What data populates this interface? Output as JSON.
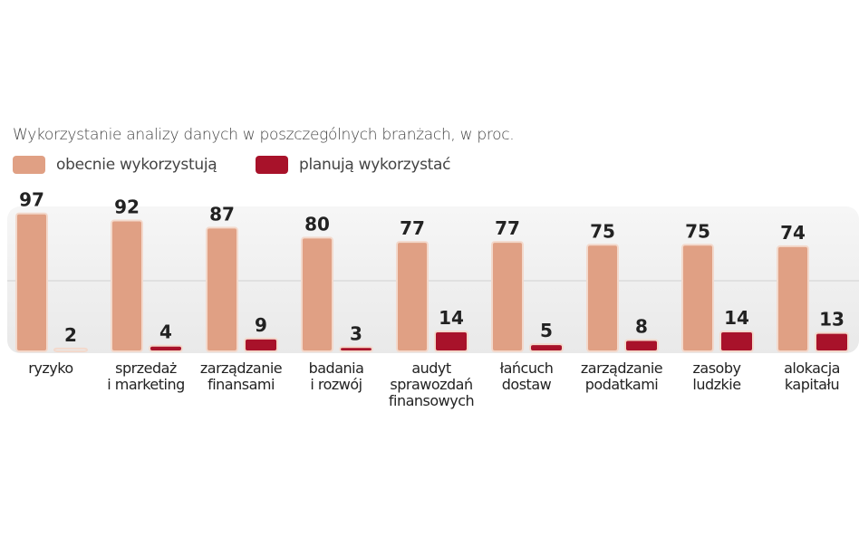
{
  "chart_data": {
    "type": "bar",
    "title": "Wykorzystanie  analizy danych w poszczególnych branżach, w  proc.",
    "categories": [
      [
        "ryzyko"
      ],
      [
        "sprzedaż",
        "i marketing"
      ],
      [
        "zarządzanie",
        "finansami"
      ],
      [
        "badania",
        "i rozwój"
      ],
      [
        "audyt",
        "sprawozdań",
        "finansowych"
      ],
      [
        "łańcuch",
        "dostaw"
      ],
      [
        "zarządzanie",
        "podatkami"
      ],
      [
        "zasoby",
        "ludzkie"
      ],
      [
        "alokacja",
        "kapitału"
      ]
    ],
    "series": [
      {
        "name": "obecnie wykorzystują",
        "color": "#e0a084",
        "values": [
          97,
          92,
          87,
          80,
          77,
          77,
          75,
          75,
          74
        ]
      },
      {
        "name": "planują wykorzystać",
        "color": "#a8122a",
        "values": [
          2,
          4,
          9,
          3,
          14,
          5,
          8,
          14,
          13
        ]
      }
    ],
    "xlabel": "",
    "ylabel": "",
    "ylim": [
      0,
      100
    ],
    "grid": true,
    "legend": "top-left"
  }
}
